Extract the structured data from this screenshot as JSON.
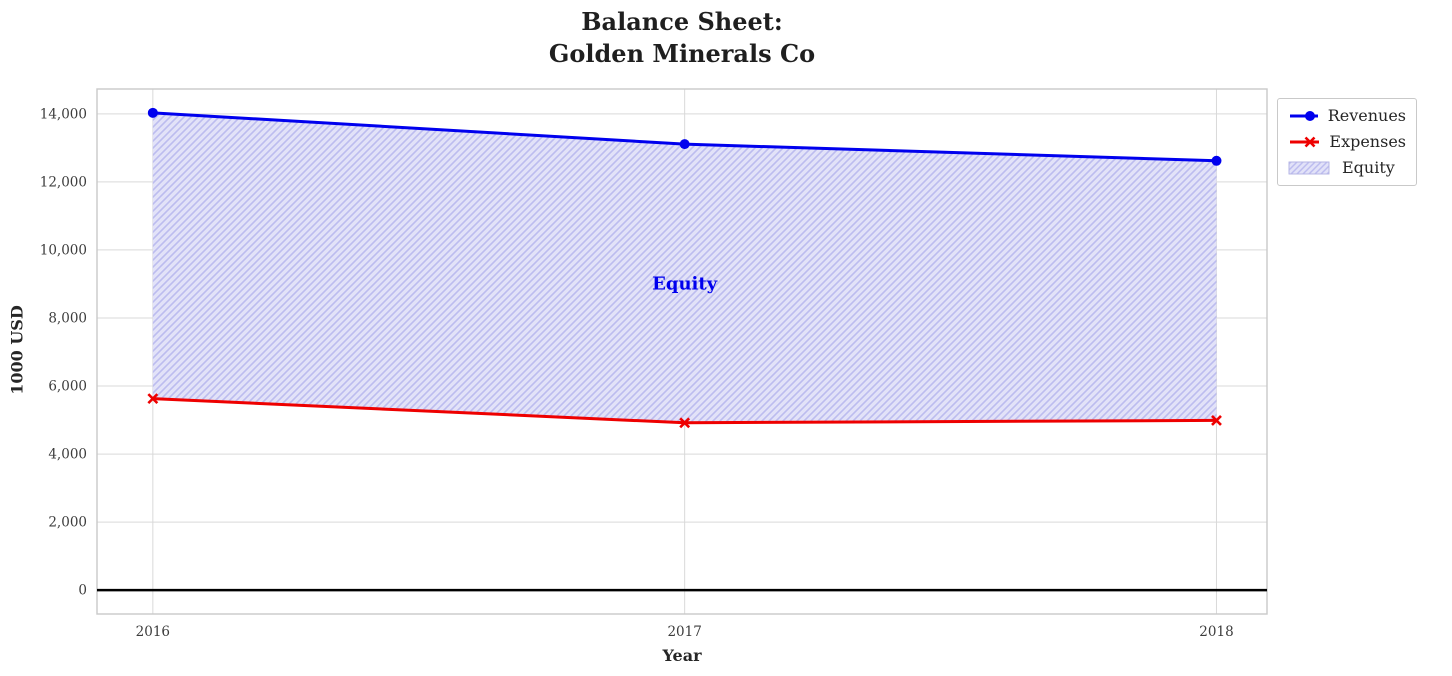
{
  "title": "Balance Sheet:\nGolden Minerals Co",
  "chart_data": {
    "type": "line",
    "title": "Balance Sheet: Golden Minerals Co",
    "xlabel": "Year",
    "ylabel": "1000 USD",
    "x": [
      2016,
      2017,
      2018
    ],
    "x_tick_labels": [
      "2016",
      "2017",
      "2018"
    ],
    "series": [
      {
        "name": "Revenues",
        "values": [
          14030,
          13110,
          12620
        ],
        "color": "#0000ee",
        "marker": "circle"
      },
      {
        "name": "Expenses",
        "values": [
          5630,
          4920,
          4990
        ],
        "color": "#ee0000",
        "marker": "x"
      }
    ],
    "fill_between": {
      "name": "Equity",
      "upper_series": "Revenues",
      "lower_series": "Expenses",
      "fill_color": "#e2e2f8",
      "hatch_color": "#bcbcef",
      "hatch_style": "////",
      "label": {
        "text": "Equity",
        "x": 2017,
        "y": 9000,
        "color": "#0000ee"
      }
    },
    "yticks": [
      0,
      2000,
      4000,
      6000,
      8000,
      10000,
      12000,
      14000
    ],
    "ytick_labels": [
      "0",
      "2,000",
      "4,000",
      "6,000",
      "8,000",
      "10,000",
      "12,000",
      "14,000"
    ],
    "ylim": [
      -700,
      14730
    ],
    "xlim": [
      2015.895,
      2018.095
    ],
    "grid": true,
    "grid_color": "#d9d9d9",
    "spine_color": "#c9c9c9",
    "tick_label_color": "#3c3c3c",
    "zero_line": {
      "show": true,
      "color": "#000000"
    },
    "legend": {
      "position": "outside-top-right",
      "entries": [
        {
          "label": "Revenues",
          "swatch": "line-circle",
          "color": "#0000ee"
        },
        {
          "label": "Expenses",
          "swatch": "line-x",
          "color": "#ee0000"
        },
        {
          "label": "Equity",
          "swatch": "hatched-patch",
          "color": "#bcbcef"
        }
      ]
    }
  }
}
